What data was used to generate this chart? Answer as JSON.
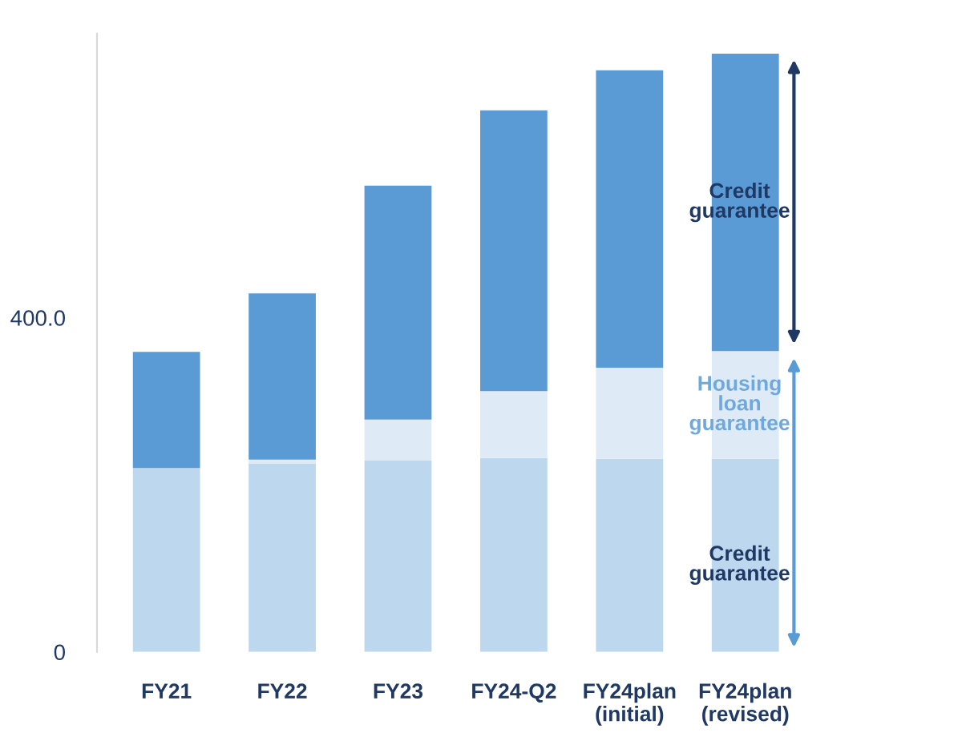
{
  "chart_data": {
    "type": "bar",
    "stacked": true,
    "categories": [
      "FY21",
      "FY22",
      "FY23",
      "FY24-Q2",
      "FY24plan\n(initial)",
      "FY24plan\n(revised)"
    ],
    "series": [
      {
        "color": "#bdd7ee",
        "values": [
          220,
          225,
          229,
          232,
          231,
          231
        ]
      },
      {
        "color": "#deebf7",
        "values": [
          null,
          5,
          49,
          80,
          109,
          129
        ]
      },
      {
        "color": "#5b9bd5",
        "values": [
          139,
          199,
          280,
          336,
          356,
          356
        ]
      }
    ],
    "annotations": [
      "Credit\nguarantee",
      "Housing\nloan\nguarantee",
      "Credit\nguarantee"
    ],
    "ylim": [
      0,
      740
    ],
    "yticks": [
      0,
      {
        "value": 400,
        "label": "400.0"
      }
    ],
    "grid": false,
    "legend": false
  }
}
